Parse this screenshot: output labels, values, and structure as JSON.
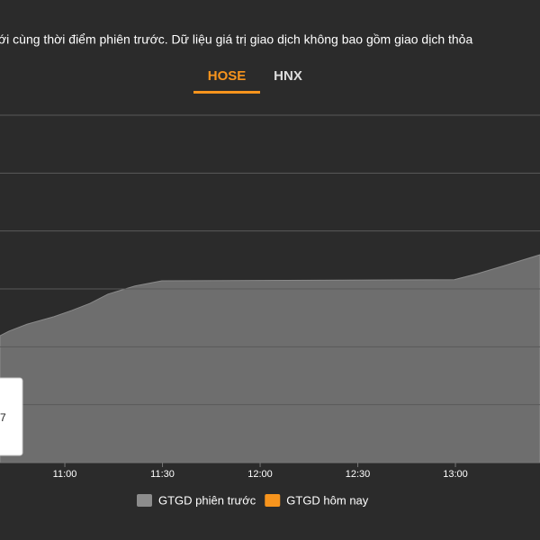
{
  "header_text": "ới cùng thời điểm phiên trước. Dữ liệu giá trị giao dịch không bao gồm giao dịch thỏa",
  "tabs": [
    "HOSE",
    "HNX"
  ],
  "tooltip": "7",
  "chart_data": {
    "type": "area",
    "x": [
      10.668,
      10.714,
      10.806,
      10.944,
      11.037,
      11.129,
      11.221,
      11.359,
      11.497,
      12.995,
      13.11,
      13.249,
      13.433
    ],
    "series": [
      {
        "name": "GTGD phiên trước",
        "color": "#6e6e6e",
        "values": [
          2.19,
          2.27,
          2.39,
          2.52,
          2.63,
          2.75,
          2.91,
          3.05,
          3.14,
          3.16,
          3.26,
          3.4,
          3.59
        ]
      },
      {
        "name": "GTGD hôm nay",
        "color": "#f7941d",
        "values": [
          null,
          null,
          null,
          null,
          null,
          null,
          null,
          null,
          null,
          null,
          null,
          null,
          null
        ]
      }
    ],
    "xlim": [
      10.668,
      13.433
    ],
    "xticks": [
      {
        "value": 11,
        "label": "11:00"
      },
      {
        "value": 11.5,
        "label": "11:30"
      },
      {
        "value": 12,
        "label": "12:00"
      },
      {
        "value": 12.5,
        "label": "12:30"
      },
      {
        "value": 13,
        "label": "13:00"
      }
    ],
    "ylim": [
      0,
      6
    ],
    "yticks": [
      1,
      2,
      3,
      4,
      5,
      6
    ],
    "grid": true
  }
}
